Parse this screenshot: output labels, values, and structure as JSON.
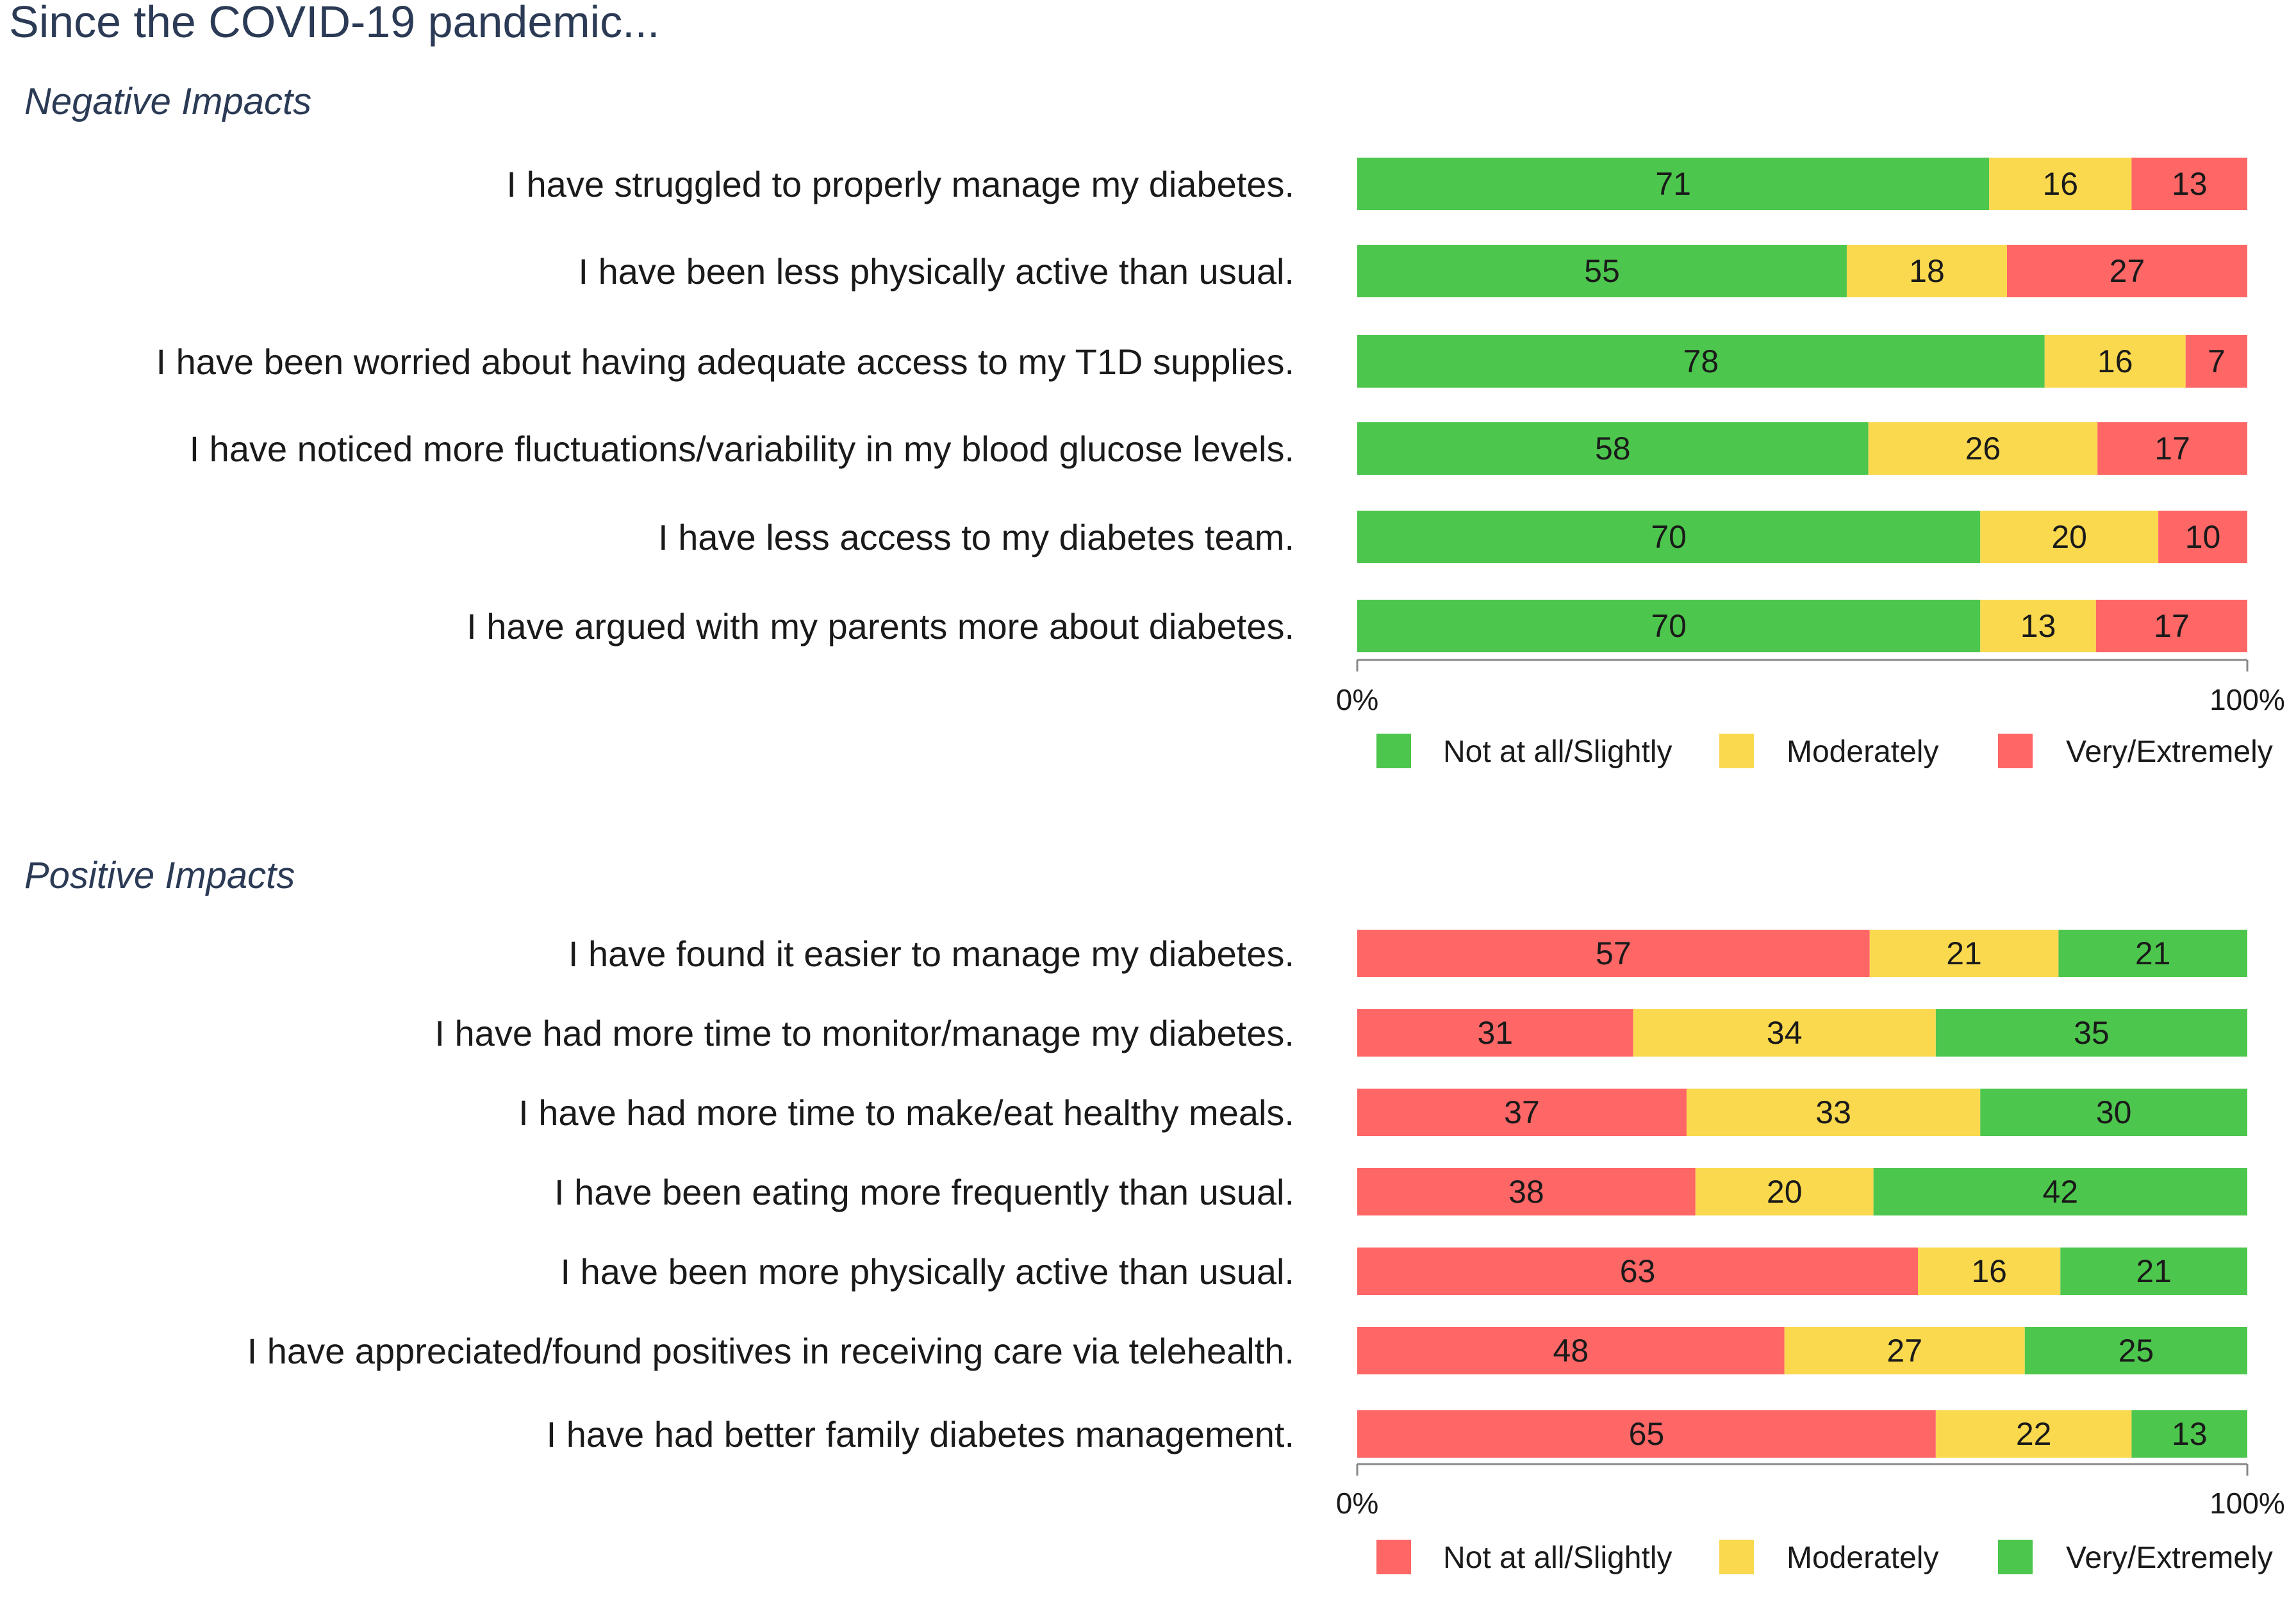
{
  "title": "Since the COVID-19 pandemic...",
  "colors": {
    "green": "#4dc64d",
    "yellow": "#fbd94e",
    "red": "#ff6666",
    "axis": "#888888"
  },
  "chart_data": [
    {
      "type": "bar",
      "orientation": "horizontal-stacked-percent",
      "section_title": "Negative Impacts",
      "categories": [
        "I have struggled to properly manage my diabetes.",
        "I have been less physically active than usual.",
        "I have been worried about having adequate access to my T1D supplies.",
        "I have noticed more fluctuations/variability in my blood glucose levels.",
        "I have less access to my diabetes team.",
        "I have argued with my parents more about diabetes."
      ],
      "series": [
        {
          "name": "Not at all/Slightly",
          "color": "green",
          "values": [
            71,
            55,
            78,
            58,
            70,
            70
          ]
        },
        {
          "name": "Moderately",
          "color": "yellow",
          "values": [
            16,
            18,
            16,
            26,
            20,
            13
          ]
        },
        {
          "name": "Very/Extremely",
          "color": "red",
          "values": [
            13,
            27,
            7,
            17,
            10,
            17
          ]
        }
      ],
      "xlim": [
        0,
        100
      ],
      "xticks": [
        "0%",
        "100%"
      ],
      "legend": "bottom"
    },
    {
      "type": "bar",
      "orientation": "horizontal-stacked-percent",
      "section_title": "Positive Impacts",
      "categories": [
        "I have found it easier to manage my diabetes.",
        "I have had more time to monitor/manage my diabetes.",
        "I have had more time to make/eat healthy meals.",
        "I have been eating more frequently than usual.",
        "I have been more physically active than usual.",
        "I have appreciated/found positives in receiving care via telehealth.",
        "I have had better family diabetes management."
      ],
      "series": [
        {
          "name": "Not at all/Slightly",
          "color": "red",
          "values": [
            57,
            31,
            37,
            38,
            63,
            48,
            65
          ]
        },
        {
          "name": "Moderately",
          "color": "yellow",
          "values": [
            21,
            34,
            33,
            20,
            16,
            27,
            22
          ]
        },
        {
          "name": "Very/Extremely",
          "color": "green",
          "values": [
            21,
            35,
            30,
            42,
            21,
            25,
            13
          ]
        }
      ],
      "xlim": [
        0,
        100
      ],
      "xticks": [
        "0%",
        "100%"
      ],
      "legend": "bottom"
    }
  ]
}
